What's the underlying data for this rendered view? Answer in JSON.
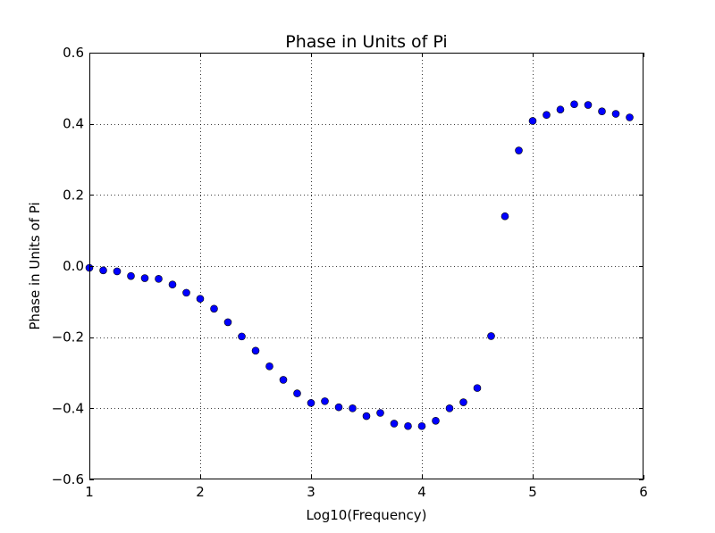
{
  "chart_data": {
    "type": "scatter",
    "title": "Phase in Units of Pi",
    "xlabel": "Log10(Frequency)",
    "ylabel": "Phase in Units of Pi",
    "xlim": [
      1,
      6
    ],
    "ylim": [
      -0.6,
      0.6
    ],
    "xticks": [
      1,
      2,
      3,
      4,
      5,
      6
    ],
    "xtick_labels": [
      "1",
      "2",
      "3",
      "4",
      "5",
      "6"
    ],
    "yticks": [
      -0.6,
      -0.4,
      -0.2,
      0.0,
      0.2,
      0.4,
      0.6
    ],
    "ytick_labels": [
      "−0.6",
      "−0.4",
      "−0.2",
      "0.0",
      "0.2",
      "0.4",
      "0.6"
    ],
    "grid": true,
    "marker_color": "#0000ff",
    "series": [
      {
        "x": [
          1.0,
          1.125,
          1.25,
          1.375,
          1.5,
          1.625,
          1.75,
          1.875,
          2.0,
          2.125,
          2.25,
          2.375,
          2.5,
          2.625,
          2.75,
          2.875,
          3.0,
          3.125,
          3.25,
          3.375,
          3.5,
          3.625,
          3.75,
          3.875,
          4.0,
          4.125,
          4.25,
          4.375,
          4.5,
          4.625,
          4.75,
          4.875,
          5.0,
          5.125,
          5.25,
          5.375,
          5.5,
          5.625,
          5.75,
          5.875
        ],
        "y": [
          -0.005,
          -0.012,
          -0.015,
          -0.028,
          -0.034,
          -0.036,
          -0.052,
          -0.075,
          -0.092,
          -0.12,
          -0.158,
          -0.198,
          -0.238,
          -0.282,
          -0.32,
          -0.358,
          -0.385,
          -0.38,
          -0.397,
          -0.4,
          -0.422,
          -0.413,
          -0.443,
          -0.45,
          -0.45,
          -0.435,
          -0.4,
          -0.383,
          -0.343,
          -0.197,
          0.14,
          0.325,
          0.408,
          0.425,
          0.44,
          0.455,
          0.453,
          0.435,
          0.428,
          0.418
        ]
      }
    ]
  }
}
